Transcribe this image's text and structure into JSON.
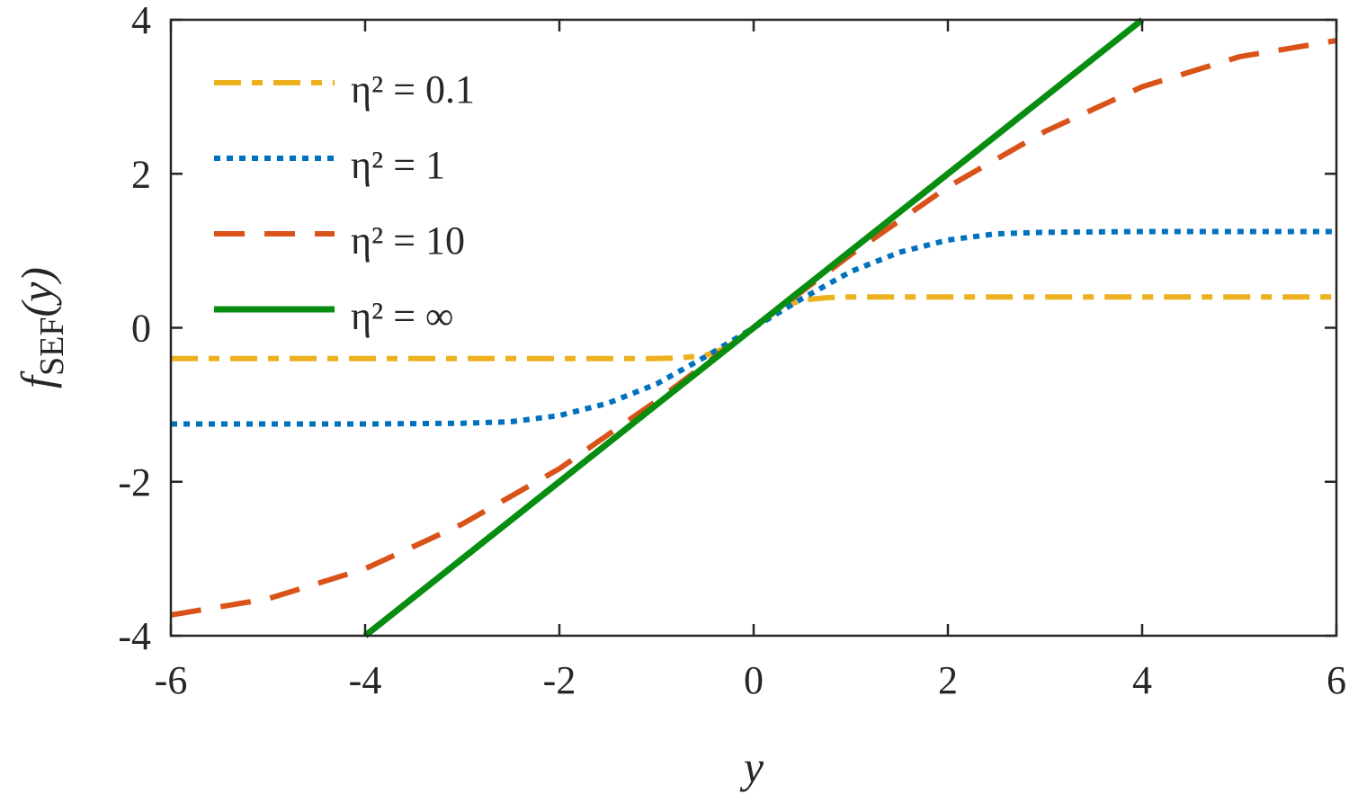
{
  "chart_data": {
    "type": "line",
    "title": "",
    "xlabel": "y",
    "ylabel": {
      "main": "f",
      "sub": "SEF",
      "arg": "(y)"
    },
    "xlim": [
      -6,
      6
    ],
    "ylim": [
      -4,
      4
    ],
    "xticks": [
      -6,
      -4,
      -2,
      0,
      2,
      4,
      6
    ],
    "yticks": [
      -4,
      -2,
      0,
      2,
      4
    ],
    "xtick_labels": [
      "-6",
      "-4",
      "-2",
      "0",
      "2",
      "4",
      "6"
    ],
    "ytick_labels": [
      "-4",
      "-2",
      "0",
      "2",
      "4"
    ],
    "grid": false,
    "legend_position": "top-left",
    "series": [
      {
        "name": "0.1",
        "legend_label": "η² = 0.1",
        "color": "#EDB120",
        "style": "dash-dot",
        "x": [
          -6,
          -5,
          -4,
          -3,
          -2,
          -1.5,
          -1,
          -0.75,
          -0.5,
          -0.3,
          -0.15,
          0,
          0.15,
          0.3,
          0.5,
          0.75,
          1,
          1.5,
          2,
          3,
          4,
          5,
          6
        ],
        "y": [
          -0.4,
          -0.4,
          -0.4,
          -0.4,
          -0.4,
          -0.4,
          -0.4,
          -0.39,
          -0.36,
          -0.27,
          -0.15,
          0,
          0.15,
          0.27,
          0.36,
          0.39,
          0.4,
          0.4,
          0.4,
          0.4,
          0.4,
          0.4,
          0.4
        ]
      },
      {
        "name": "1",
        "legend_label": "η² = 1",
        "color": "#0072BD",
        "style": "dotted",
        "x": [
          -6,
          -5,
          -4,
          -3,
          -2.5,
          -2,
          -1.5,
          -1,
          -0.5,
          0,
          0.5,
          1,
          1.5,
          2,
          2.5,
          3,
          4,
          5,
          6
        ],
        "y": [
          -1.25,
          -1.25,
          -1.25,
          -1.24,
          -1.22,
          -1.14,
          -0.98,
          -0.73,
          -0.38,
          0,
          0.38,
          0.73,
          0.98,
          1.14,
          1.22,
          1.24,
          1.25,
          1.25,
          1.25
        ]
      },
      {
        "name": "10",
        "legend_label": "η² = 10",
        "color": "#D95319",
        "style": "dashed",
        "x": [
          -6,
          -5,
          -4,
          -3,
          -2,
          -1,
          0,
          1,
          2,
          3,
          4,
          5,
          6
        ],
        "y": [
          -3.73,
          -3.52,
          -3.13,
          -2.55,
          -1.83,
          -0.95,
          0,
          0.95,
          1.83,
          2.55,
          3.13,
          3.52,
          3.73
        ]
      },
      {
        "name": "∞",
        "legend_label": "η² = ∞",
        "color": "#078D0F",
        "style": "solid",
        "x": [
          -4,
          4
        ],
        "y": [
          -4,
          4
        ]
      }
    ]
  }
}
